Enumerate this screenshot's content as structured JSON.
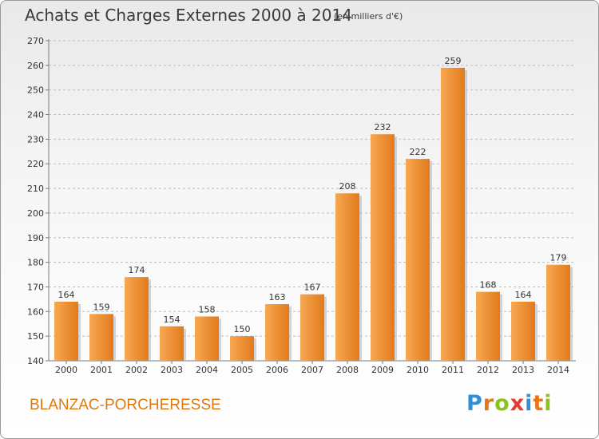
{
  "header": {
    "title": "Achats et Charges Externes 2000 à 2014",
    "subtitle": "(en milliers d'€)"
  },
  "footer": {
    "commune": "BLANZAC-PORCHERESSE",
    "logo_letters": [
      "P",
      "r",
      "o",
      "x",
      "i",
      "t",
      "i"
    ],
    "logo_colors": [
      "#2f8fd8",
      "#e9741a",
      "#8cc21f",
      "#e23b2f",
      "#2f8fd8",
      "#e9741a",
      "#8cc21f"
    ]
  },
  "colors": {
    "bar_light": "#f7a852",
    "bar_dark": "#e27a1c",
    "bar_shadow": "#b9b9b9",
    "axis": "#7a7a7a",
    "grid": "#bdbdbd"
  },
  "chart_data": {
    "type": "bar",
    "title": "Achats et Charges Externes 2000 à 2014",
    "subtitle": "(en milliers d'€)",
    "categories": [
      "2000",
      "2001",
      "2002",
      "2003",
      "2004",
      "2005",
      "2006",
      "2007",
      "2008",
      "2009",
      "2010",
      "2011",
      "2012",
      "2013",
      "2014"
    ],
    "values": [
      164,
      159,
      174,
      154,
      158,
      150,
      163,
      167,
      208,
      232,
      222,
      259,
      168,
      164,
      179
    ],
    "ylim": [
      140,
      270
    ],
    "yticks": [
      140,
      150,
      160,
      170,
      180,
      190,
      200,
      210,
      220,
      230,
      240,
      250,
      260,
      270
    ],
    "grid": true,
    "data_labels": true
  }
}
